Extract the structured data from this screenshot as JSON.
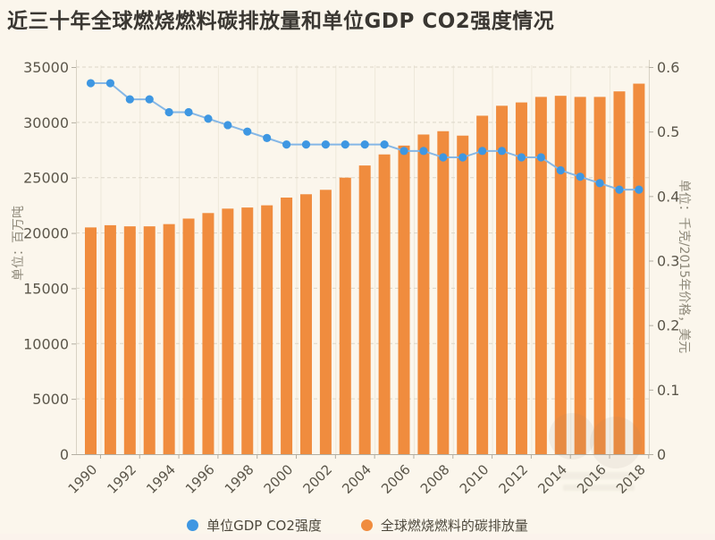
{
  "title": "近三十年全球燃烧燃料碳排放量和单位GDP CO2强度情况",
  "colors": {
    "background": "#fbf6ec",
    "bar": "#f08c3e",
    "dot": "#3e97e2",
    "line": "#85b7e6",
    "grid": "#dcd6c8",
    "vgrid": "#eee8da",
    "axis_line": "#b3aea2",
    "side_axis_line": "#d8d2c4",
    "tick_text": "#5b564a",
    "axis_title_text": "#8f8a7b",
    "title_text": "#3a3732",
    "legend_text": "#4c473c"
  },
  "left_axis": {
    "title": "单位：百万吨",
    "min": 0,
    "max": 35000,
    "step": 5000,
    "ticks": [
      0,
      5000,
      10000,
      15000,
      20000,
      25000,
      30000,
      35000
    ]
  },
  "right_axis": {
    "title": "单位：千克/2015年价格，美元",
    "min": 0,
    "max": 0.6,
    "step": 0.1,
    "ticks": [
      "0",
      "0.1",
      "0.2",
      "0.3",
      "0.4",
      "0.5",
      "0.6"
    ]
  },
  "x_axis": {
    "tick_labels": [
      "1990",
      "1992",
      "1994",
      "1996",
      "1998",
      "2000",
      "2002",
      "2004",
      "2006",
      "2008",
      "2010",
      "2012",
      "2014",
      "2016",
      "2018"
    ]
  },
  "legend": [
    {
      "label": "单位GDP CO2强度",
      "color_key": "dot"
    },
    {
      "label": "全球燃烧燃料的碳排放量",
      "color_key": "bar"
    }
  ],
  "chart_data": {
    "type": "bar",
    "title": "近三十年全球燃烧燃料碳排放量和单位GDP CO2强度情况",
    "categories": [
      "1990",
      "1991",
      "1992",
      "1993",
      "1994",
      "1995",
      "1996",
      "1997",
      "1998",
      "1999",
      "2000",
      "2001",
      "2002",
      "2003",
      "2004",
      "2005",
      "2006",
      "2007",
      "2008",
      "2009",
      "2010",
      "2011",
      "2012",
      "2013",
      "2014",
      "2015",
      "2016",
      "2017",
      "2018"
    ],
    "series": [
      {
        "name": "全球燃烧燃料的碳排放量",
        "type": "bar",
        "axis": "left",
        "unit": "百万吨",
        "values": [
          20500,
          20700,
          20600,
          20600,
          20800,
          21300,
          21800,
          22200,
          22300,
          22500,
          23200,
          23500,
          23900,
          25000,
          26100,
          27100,
          27900,
          28900,
          29200,
          28800,
          30600,
          31500,
          31800,
          32300,
          32400,
          32300,
          32300,
          32800,
          33500
        ]
      },
      {
        "name": "单位GDP CO2强度",
        "type": "line",
        "axis": "right",
        "unit": "千克/2015年价格，美元",
        "values": [
          0.575,
          0.575,
          0.55,
          0.55,
          0.53,
          0.53,
          0.52,
          0.51,
          0.5,
          0.49,
          0.48,
          0.48,
          0.48,
          0.48,
          0.48,
          0.48,
          0.47,
          0.47,
          0.46,
          0.46,
          0.47,
          0.47,
          0.46,
          0.46,
          0.44,
          0.43,
          0.42,
          0.41,
          0.41
        ]
      }
    ],
    "left_ylim": [
      0,
      35000
    ],
    "right_ylim": [
      0,
      0.6
    ],
    "grid": true,
    "legend_position": "bottom"
  }
}
